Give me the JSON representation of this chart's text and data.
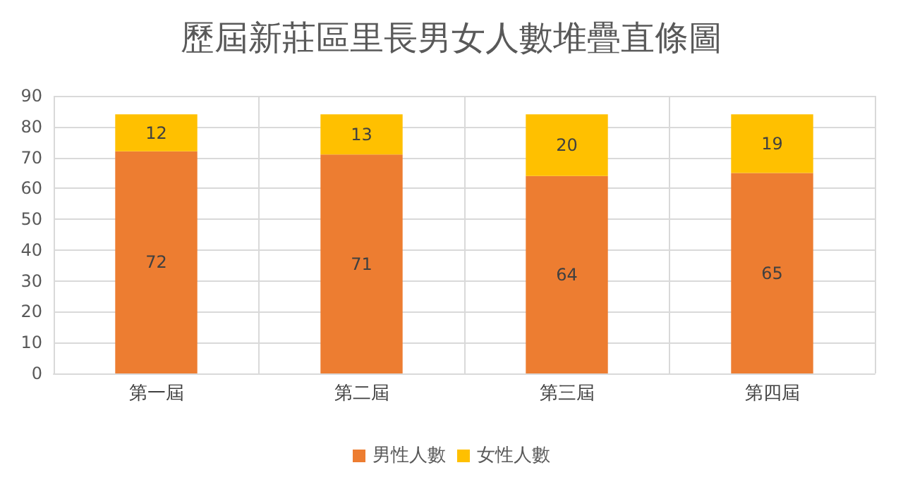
{
  "chart_data": {
    "type": "bar",
    "title": "歷屆新莊區里長男女人數堆疊直條圖",
    "categories": [
      "第一屆",
      "第二屆",
      "第三屆",
      "第四屆"
    ],
    "series": [
      {
        "name": "男性人數",
        "color": "#ed7d31",
        "values": [
          72,
          71,
          64,
          65
        ]
      },
      {
        "name": "女性人數",
        "color": "#ffc000",
        "values": [
          12,
          13,
          20,
          19
        ]
      }
    ],
    "stacked": true,
    "data_labels": true,
    "ylim": [
      0,
      90
    ],
    "yticks": [
      0,
      10,
      20,
      30,
      40,
      50,
      60,
      70,
      80,
      90
    ],
    "grid": true,
    "legend": "bottom"
  }
}
